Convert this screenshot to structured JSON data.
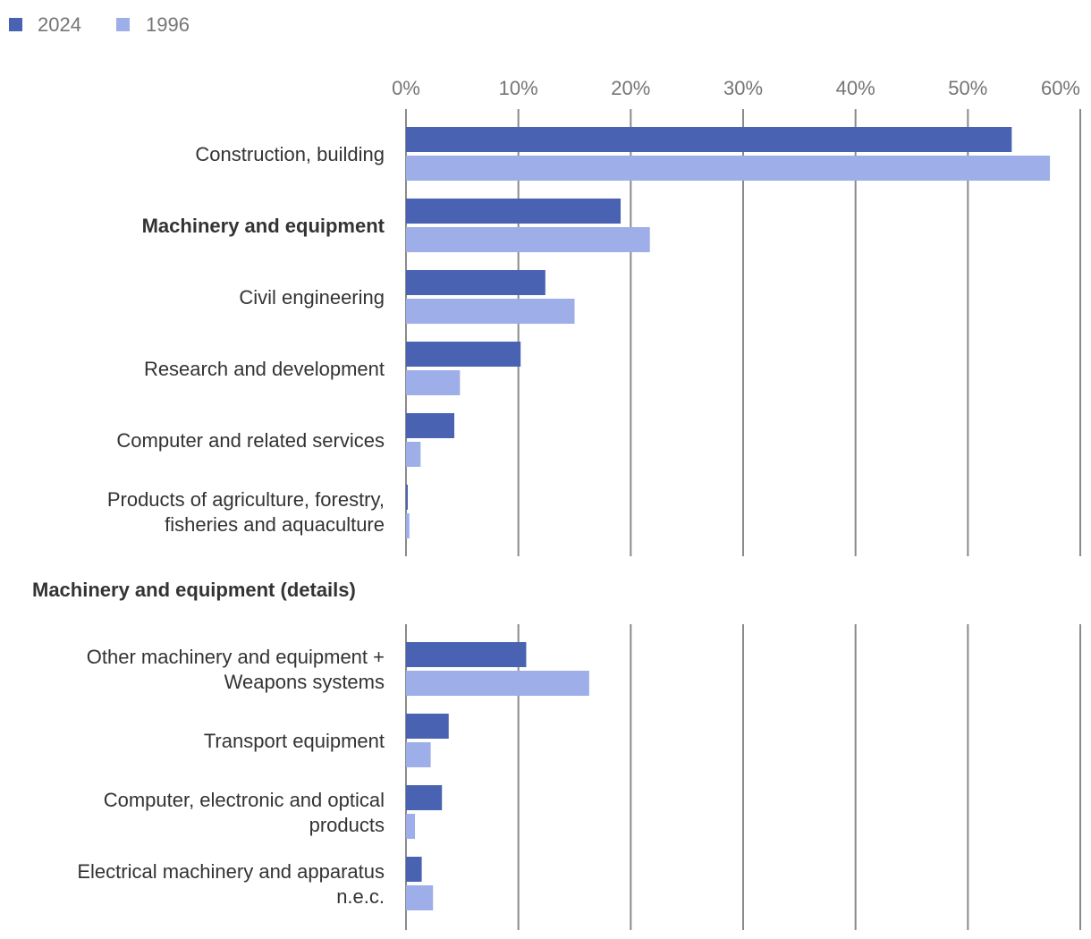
{
  "colors": {
    "series_2024": "#4962b2",
    "series_1996": "#9daee8"
  },
  "legend": [
    {
      "label": "2024",
      "color": "#4962b2"
    },
    {
      "label": "1996",
      "color": "#9daee8"
    }
  ],
  "axis": {
    "ticks": [
      "0%",
      "10%",
      "20%",
      "30%",
      "40%",
      "50%",
      "60%"
    ]
  },
  "chart_data": [
    {
      "type": "bar",
      "orientation": "horizontal",
      "title": "",
      "categories": [
        "Construction, building",
        "Machinery and equipment",
        "Civil engineering",
        "Research and development",
        "Computer and related services",
        "Products of agriculture, forestry, fisheries and aquaculture"
      ],
      "label_lines": [
        [
          "Construction, building"
        ],
        [
          "Machinery and equipment"
        ],
        [
          "Civil engineering"
        ],
        [
          "Research and development"
        ],
        [
          "Computer and related services"
        ],
        [
          "Products of agriculture, forestry,",
          "fisheries and aquaculture"
        ]
      ],
      "bold_categories": [
        "Machinery and equipment"
      ],
      "series": [
        {
          "name": "2024",
          "values": [
            53.9,
            19.1,
            12.4,
            10.2,
            4.3,
            0.1
          ]
        },
        {
          "name": "1996",
          "values": [
            57.3,
            21.7,
            15.0,
            4.8,
            1.3,
            0.3
          ]
        }
      ],
      "xlim": [
        0,
        60
      ],
      "xlabel": "",
      "ylabel": "",
      "tick_labels": [
        "0%",
        "10%",
        "20%",
        "30%",
        "40%",
        "50%",
        "60%"
      ]
    },
    {
      "type": "bar",
      "orientation": "horizontal",
      "title": "Machinery and equipment (details)",
      "categories": [
        "Other machinery and equipment + Weapons systems",
        "Transport equipment",
        "Computer, electronic and optical products",
        "Electrical machinery and apparatus n.e.c."
      ],
      "label_lines": [
        [
          "Other machinery and equipment +",
          "Weapons systems"
        ],
        [
          "Transport equipment"
        ],
        [
          "Computer, electronic and optical",
          "products"
        ],
        [
          "Electrical machinery and apparatus",
          "n.e.c."
        ]
      ],
      "bold_categories": [],
      "series": [
        {
          "name": "2024",
          "values": [
            10.7,
            3.8,
            3.2,
            1.4
          ]
        },
        {
          "name": "1996",
          "values": [
            16.3,
            2.2,
            0.8,
            2.4
          ]
        }
      ],
      "xlim": [
        0,
        60
      ],
      "xlabel": "",
      "ylabel": ""
    }
  ]
}
